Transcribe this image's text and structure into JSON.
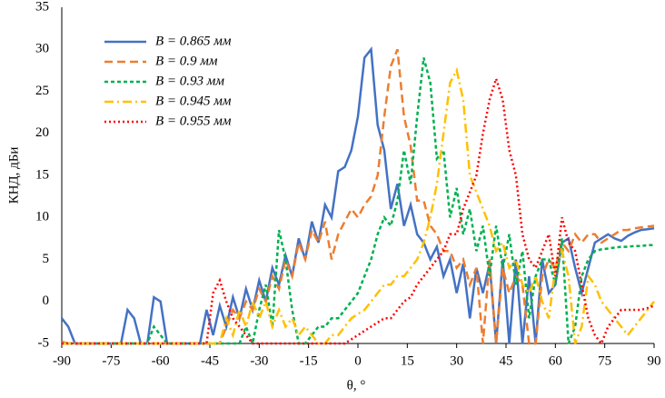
{
  "chart_data": {
    "type": "line",
    "xlabel": "θ, °",
    "ylabel": "КНД, дБи",
    "xlim": [
      -90,
      90
    ],
    "xticks": [
      -90,
      -75,
      -60,
      -45,
      -30,
      -15,
      0,
      15,
      30,
      45,
      60,
      75,
      90
    ],
    "ylim": [
      -5,
      35
    ],
    "yticks": [
      -5,
      0,
      5,
      10,
      15,
      20,
      25,
      30,
      35
    ],
    "grid": false,
    "legend": "upper left",
    "x": [
      -90,
      -88,
      -86,
      -84,
      -82,
      -80,
      -78,
      -76,
      -74,
      -72,
      -70,
      -68,
      -66,
      -64,
      -62,
      -60,
      -58,
      -56,
      -54,
      -52,
      -50,
      -48,
      -46,
      -44,
      -42,
      -40,
      -38,
      -36,
      -34,
      -32,
      -30,
      -28,
      -26,
      -24,
      -22,
      -20,
      -18,
      -16,
      -14,
      -12,
      -10,
      -8,
      -6,
      -4,
      -2,
      0,
      2,
      4,
      6,
      8,
      10,
      12,
      14,
      16,
      18,
      20,
      22,
      24,
      26,
      28,
      30,
      32,
      34,
      36,
      38,
      40,
      42,
      44,
      46,
      48,
      50,
      52,
      54,
      56,
      58,
      60,
      62,
      64,
      66,
      68,
      70,
      72,
      74,
      76,
      78,
      80,
      82,
      84,
      86,
      88,
      90
    ],
    "series": [
      {
        "name": "B = 0.865 мм",
        "color": "#4472c4",
        "dash": "solid",
        "values": [
          -2,
          -3,
          -5,
          -5,
          -5,
          -5,
          -5,
          -5,
          -5,
          -5,
          -1,
          -2,
          -5,
          -5,
          0.5,
          0,
          -5,
          -5,
          -5,
          -5,
          -5,
          -5,
          -1,
          -4,
          -0.5,
          -3,
          0.5,
          -2,
          1.5,
          -1,
          2.5,
          0,
          4,
          2,
          5.5,
          3,
          7.5,
          5,
          9.5,
          7,
          11.5,
          10,
          15.5,
          16,
          18,
          22,
          29,
          30,
          21,
          18,
          11,
          14,
          9,
          11.5,
          8,
          7,
          5,
          6.5,
          3,
          5,
          1,
          4.5,
          -2,
          4,
          1,
          4.5,
          -5,
          5,
          -5,
          5,
          -5,
          3,
          -5,
          5,
          1,
          2,
          7,
          7.5,
          4,
          1,
          4,
          7,
          7.5,
          8,
          7.5,
          7.2,
          7.8,
          8.2,
          8.5,
          8.6,
          8.7
        ]
      },
      {
        "name": "B = 0.9 мм",
        "color": "#ed7d31",
        "dash": "dashed",
        "values": [
          -4.8,
          -5,
          -5,
          -5,
          -5,
          -5,
          -5,
          -5,
          -5,
          -5,
          -5,
          -5,
          -5,
          -5,
          -5,
          -5,
          -5,
          -5,
          -5,
          -5,
          -5,
          -5,
          -5,
          -5,
          -5,
          -3,
          -1,
          -2,
          0,
          -1,
          1.5,
          0,
          3,
          1.5,
          5,
          3,
          7,
          5,
          8.5,
          7,
          9.5,
          5,
          8,
          9.5,
          11,
          10,
          11.5,
          12.5,
          15,
          22,
          28,
          30,
          22,
          18.5,
          12,
          12,
          9,
          8,
          6,
          6,
          4,
          5,
          2,
          4,
          -5,
          5,
          -5,
          4,
          1,
          3,
          2,
          -5,
          -5,
          3,
          5,
          4,
          7,
          6,
          8,
          7,
          8,
          8,
          7,
          7.5,
          8,
          8.5,
          8.5,
          8.7,
          8.8,
          8.9,
          9
        ]
      },
      {
        "name": "B = 0.93 мм",
        "color": "#00b050",
        "dash": "short-dashed",
        "values": [
          -5,
          -5,
          -5,
          -5,
          -5,
          -5,
          -5,
          -5,
          -5,
          -5,
          -5,
          -5,
          -5,
          -5,
          -3,
          -4,
          -5,
          -5,
          -5,
          -5,
          -5,
          -5,
          -5,
          -5,
          -5,
          -5,
          -5,
          -5,
          -3,
          -5,
          -1,
          2,
          -3,
          8.5,
          5,
          -1,
          -5,
          -5,
          -4,
          -3,
          -3,
          -2,
          -2,
          -1,
          0,
          1,
          3,
          5,
          8,
          10,
          9,
          12,
          18,
          14,
          22,
          29,
          26,
          17,
          18,
          10,
          13.5,
          8,
          11,
          6,
          9,
          3,
          9,
          4,
          8,
          2,
          6,
          -2,
          3,
          5,
          5,
          2,
          7.5,
          -5,
          -3,
          3,
          5,
          6,
          6.2,
          6.3,
          6.4,
          6.5,
          6.5,
          6.6,
          6.6,
          6.7,
          6.7
        ]
      },
      {
        "name": "B = 0.945 мм",
        "color": "#ffc000",
        "dash": "dash-dot",
        "values": [
          -5,
          -5,
          -5,
          -5,
          -5,
          -5,
          -5,
          -5,
          -5,
          -5,
          -5,
          -5,
          -5,
          -5,
          -5,
          -5,
          -5,
          -5,
          -5,
          -5,
          -5,
          -5,
          -5,
          -5,
          -5,
          -2,
          -4,
          -1,
          -3,
          0,
          -2,
          0,
          -3,
          -1,
          -3,
          -2,
          -4,
          -3,
          -4,
          -5,
          -5,
          -4,
          -4,
          -3,
          -2,
          -1.5,
          -1,
          0,
          1,
          2,
          2,
          3,
          3,
          4,
          5,
          7,
          10,
          14,
          20,
          26,
          27.5,
          24,
          15,
          13,
          11,
          9,
          6,
          7,
          4,
          5,
          2,
          1,
          3,
          0,
          -2,
          4,
          6,
          3,
          -5,
          -3,
          3,
          2,
          0,
          -1,
          -2,
          -3,
          -4,
          -3,
          -2,
          -1,
          0
        ]
      },
      {
        "name": "B = 0.955 мм",
        "color": "#ff0000",
        "dash": "dotted",
        "values": [
          -5,
          -5,
          -5,
          -5,
          -5,
          -5,
          -5,
          -5,
          -5,
          -5,
          -5,
          -5,
          -5,
          -5,
          -5,
          -5,
          -5,
          -5,
          -5,
          -5,
          -5,
          -5,
          -5,
          1,
          2.5,
          0,
          -2,
          -3,
          -4,
          -5,
          -5,
          -5,
          -5,
          -5,
          -5,
          -5,
          -5,
          -5,
          -5,
          -5,
          -5,
          -5,
          -5,
          -5,
          -4.5,
          -4,
          -3.5,
          -3,
          -2.5,
          -2,
          -2,
          -1,
          0,
          0.5,
          2,
          3,
          4,
          5,
          6,
          8,
          8,
          11,
          13,
          15,
          20,
          24,
          26.5,
          24,
          18,
          15,
          8,
          5,
          4,
          6,
          8,
          3,
          10,
          7,
          6,
          2,
          -2,
          -4,
          -5,
          -3,
          -2,
          -1,
          -1,
          -1,
          -1,
          -0.8,
          -0.5
        ]
      }
    ]
  }
}
